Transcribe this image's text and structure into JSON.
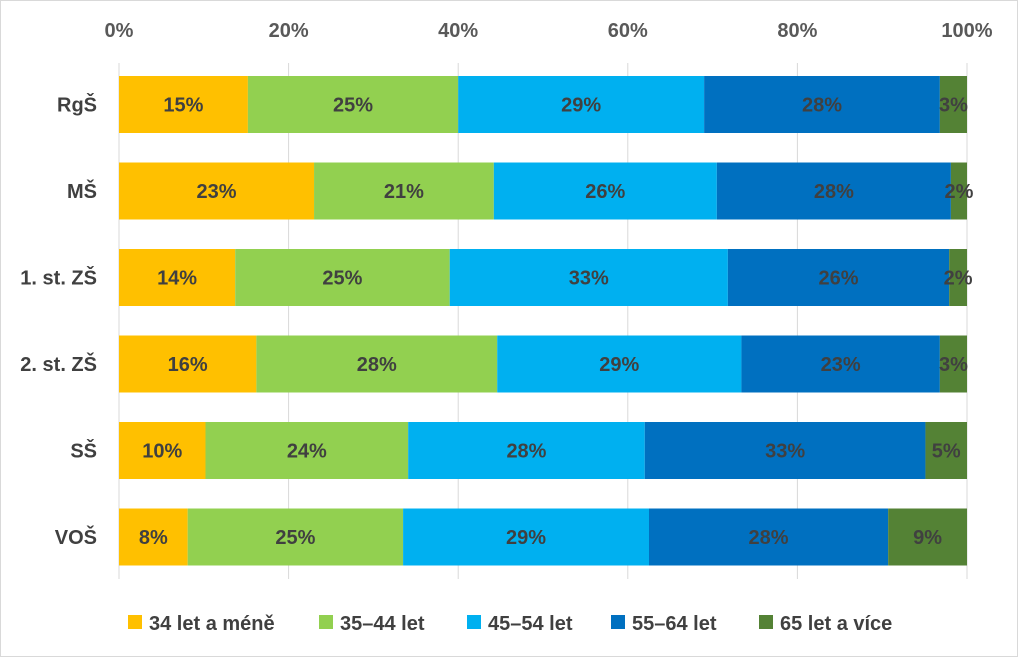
{
  "chart_data": {
    "type": "bar",
    "orientation": "horizontal",
    "stacked": "percent",
    "categories": [
      "RgŠ",
      "MŠ",
      "1. st. ZŠ",
      "2. st. ZŠ",
      "SŠ",
      "VOŠ"
    ],
    "series": [
      {
        "name": "34 let a méně",
        "color": "#FFC000",
        "values": [
          15.2,
          23.0,
          13.7,
          16.2,
          10.2,
          8.1
        ]
      },
      {
        "name": "35–44 let",
        "color": "#92D050",
        "values": [
          24.8,
          21.2,
          25.3,
          28.4,
          23.9,
          25.4
        ]
      },
      {
        "name": "45–54 let",
        "color": "#00B0F0",
        "values": [
          29.0,
          26.3,
          32.8,
          28.8,
          27.9,
          29.0
        ]
      },
      {
        "name": "55–64 let",
        "color": "#0070C0",
        "values": [
          27.8,
          27.6,
          26.1,
          23.4,
          33.1,
          28.2
        ]
      },
      {
        "name": "65 let a více",
        "color": "#548235",
        "values": [
          3.2,
          1.9,
          2.1,
          3.2,
          4.9,
          9.3
        ]
      }
    ],
    "data_labels": [
      [
        "15%",
        "25%",
        "29%",
        "28%",
        "3%"
      ],
      [
        "23%",
        "21%",
        "26%",
        "28%",
        "2%"
      ],
      [
        "14%",
        "25%",
        "33%",
        "26%",
        "2%"
      ],
      [
        "16%",
        "28%",
        "29%",
        "23%",
        "3%"
      ],
      [
        "10%",
        "24%",
        "28%",
        "33%",
        "5%"
      ],
      [
        "8%",
        "25%",
        "29%",
        "28%",
        "9%"
      ]
    ],
    "x_ticks": [
      "0%",
      "20%",
      "40%",
      "60%",
      "80%",
      "100%"
    ],
    "xlim": [
      0,
      100
    ],
    "x_axis_position": "top",
    "grid": "vertical",
    "legend": "bottom",
    "title": "",
    "xlabel": "",
    "ylabel": ""
  }
}
